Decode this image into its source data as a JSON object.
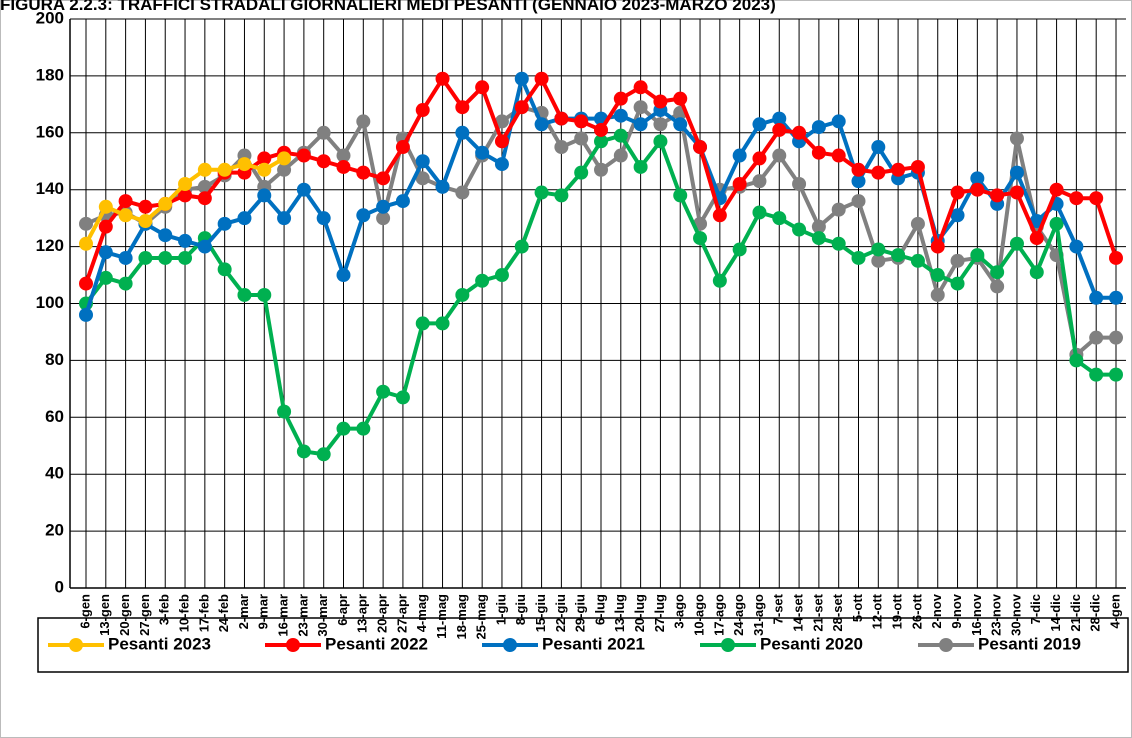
{
  "chart_data": {
    "type": "line",
    "title": "FIGURA 2.2.3: TRAFFICI STRADALI GIORNALIERI MEDI PESANTI (GENNAIO 2023-MARZO 2023)",
    "categories": [
      "6-gen",
      "13-gen",
      "20-gen",
      "27-gen",
      "3-feb",
      "10-feb",
      "17-feb",
      "24-feb",
      "2-mar",
      "9-mar",
      "16-mar",
      "23-mar",
      "30-mar",
      "6-apr",
      "13-apr",
      "20-apr",
      "27-apr",
      "4-mag",
      "11-mag",
      "18-mag",
      "25-mag",
      "1-giu",
      "8-giu",
      "15-giu",
      "22-giu",
      "29-giu",
      "6-lug",
      "13-lug",
      "20-lug",
      "27-lug",
      "3-ago",
      "10-ago",
      "17-ago",
      "24-ago",
      "31-ago",
      "7-set",
      "14-set",
      "21-set",
      "28-set",
      "5-ott",
      "12-ott",
      "19-ott",
      "26-ott",
      "2-nov",
      "9-nov",
      "16-nov",
      "23-nov",
      "30-nov",
      "7-dic",
      "14-dic",
      "21-dic",
      "28-dic",
      "4-gen"
    ],
    "series": [
      {
        "name": "Pesanti 2023",
        "color": "#ffc000",
        "values": [
          121,
          134,
          131,
          129,
          135,
          142,
          147,
          147,
          149,
          147,
          151,
          null,
          null,
          null,
          null,
          null,
          null,
          null,
          null,
          null,
          null,
          null,
          null,
          null,
          null,
          null,
          null,
          null,
          null,
          null,
          null,
          null,
          null,
          null,
          null,
          null,
          null,
          null,
          null,
          null,
          null,
          null,
          null,
          null,
          null,
          null,
          null,
          null,
          null,
          null,
          null,
          null,
          null
        ]
      },
      {
        "name": "Pesanti 2022",
        "color": "#ff0000",
        "values": [
          107,
          127,
          136,
          134,
          135,
          138,
          137,
          146,
          146,
          151,
          153,
          152,
          150,
          148,
          146,
          144,
          155,
          168,
          179,
          169,
          176,
          157,
          169,
          179,
          165,
          164,
          161,
          172,
          176,
          171,
          172,
          155,
          131,
          142,
          151,
          161,
          160,
          153,
          152,
          147,
          146,
          147,
          148,
          120,
          139,
          140,
          138,
          139,
          123,
          140,
          137,
          137,
          116
        ]
      },
      {
        "name": "Pesanti 2021",
        "color": "#0070c0",
        "values": [
          96,
          118,
          116,
          128,
          124,
          122,
          120,
          128,
          130,
          138,
          130,
          140,
          130,
          110,
          131,
          134,
          136,
          150,
          141,
          160,
          153,
          149,
          179,
          163,
          165,
          165,
          165,
          166,
          163,
          168,
          163,
          155,
          137,
          152,
          163,
          165,
          157,
          162,
          164,
          143,
          155,
          144,
          146,
          122,
          131,
          144,
          135,
          146,
          129,
          135,
          120,
          102,
          102
        ]
      },
      {
        "name": "Pesanti 2020",
        "color": "#00b050",
        "values": [
          100,
          109,
          107,
          116,
          116,
          116,
          123,
          112,
          103,
          103,
          62,
          48,
          47,
          56,
          56,
          69,
          67,
          93,
          93,
          103,
          108,
          110,
          120,
          139,
          138,
          146,
          157,
          159,
          148,
          157,
          138,
          123,
          108,
          119,
          132,
          130,
          126,
          123,
          121,
          116,
          119,
          117,
          115,
          110,
          107,
          117,
          111,
          121,
          111,
          128,
          80,
          75,
          75
        ]
      },
      {
        "name": "Pesanti 2019",
        "color": "#808080",
        "values": [
          128,
          131,
          132,
          128,
          134,
          140,
          141,
          145,
          152,
          141,
          147,
          153,
          160,
          152,
          164,
          130,
          158,
          144,
          141,
          139,
          152,
          164,
          169,
          167,
          155,
          158,
          147,
          152,
          169,
          163,
          167,
          128,
          140,
          141,
          143,
          152,
          142,
          127,
          133,
          136,
          115,
          116,
          128,
          103,
          115,
          116,
          106,
          158,
          127,
          117,
          82,
          88,
          88
        ]
      }
    ],
    "ylim": [
      0,
      200
    ],
    "yticks": [
      0,
      20,
      40,
      60,
      80,
      100,
      120,
      140,
      160,
      180,
      200
    ],
    "grid": true,
    "legend": "bottom"
  }
}
